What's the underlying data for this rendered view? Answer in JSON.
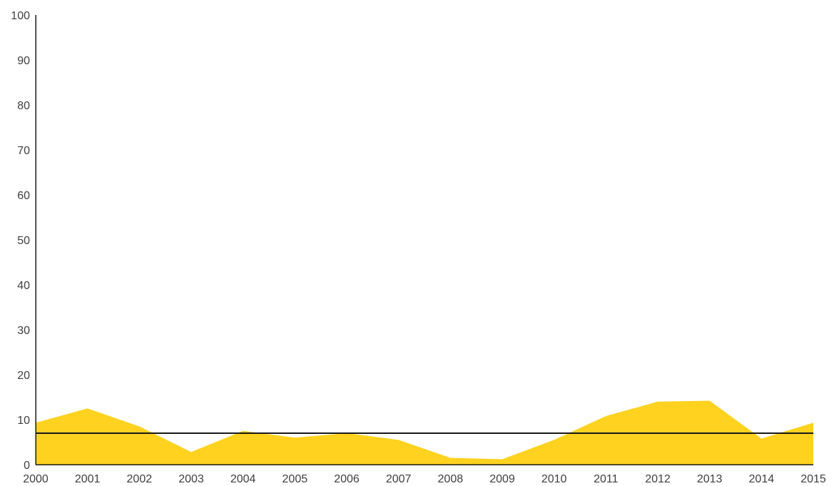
{
  "chart_data": {
    "type": "area",
    "x": [
      "2000",
      "2001",
      "2002",
      "2003",
      "2004",
      "2005",
      "2006",
      "2007",
      "2008",
      "2009",
      "2010",
      "2011",
      "2012",
      "2013",
      "2014",
      "2015"
    ],
    "series": [
      {
        "values": [
          9.3,
          12.5,
          8.5,
          2.8,
          7.5,
          6.0,
          7.0,
          5.5,
          1.5,
          1.2,
          5.5,
          10.8,
          14.0,
          14.2,
          5.8,
          9.3
        ],
        "color": "#ffd21f"
      }
    ],
    "reference_line": {
      "value": 7.0,
      "color": "#1a1a1a"
    },
    "ylim": [
      0,
      100
    ],
    "yticks": [
      "0",
      "10",
      "20",
      "30",
      "40",
      "50",
      "60",
      "70",
      "80",
      "90",
      "100"
    ],
    "grid": false,
    "legend": "none",
    "title": "",
    "xlabel": "",
    "ylabel": ""
  }
}
